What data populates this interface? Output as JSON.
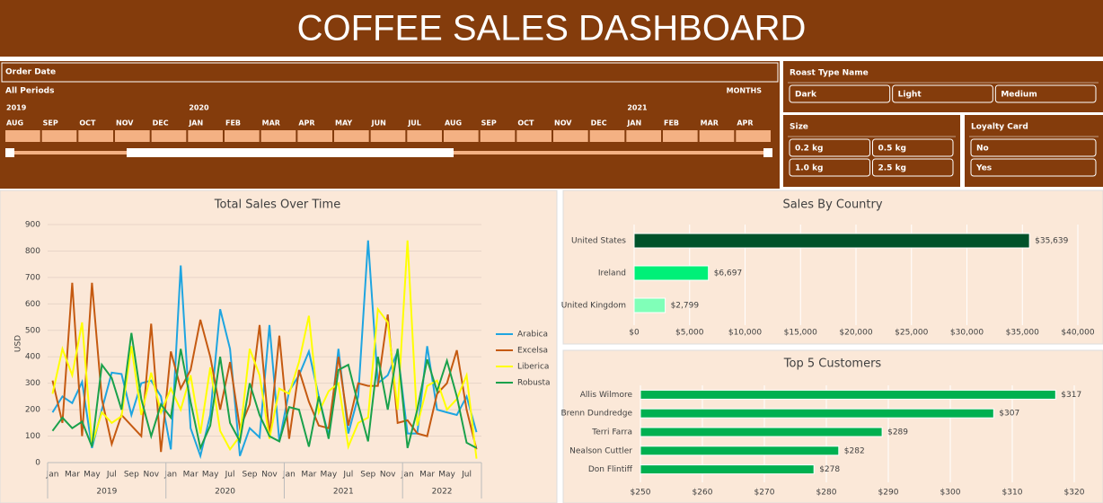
{
  "header": {
    "title": "COFFEE SALES DASHBOARD"
  },
  "timeline": {
    "label": "Order Date",
    "period": "All Periods",
    "level": "MONTHS",
    "years": [
      "2019",
      "2020",
      "2021"
    ],
    "months": [
      "AUG",
      "SEP",
      "OCT",
      "NOV",
      "DEC",
      "JAN",
      "FEB",
      "MAR",
      "APR",
      "MAY",
      "JUN",
      "JUL",
      "AUG",
      "SEP",
      "OCT",
      "NOV",
      "DEC",
      "JAN",
      "FEB",
      "MAR",
      "APR"
    ]
  },
  "slicers": [
    {
      "title": "Roast Type Name",
      "items": [
        "Dark",
        "Light",
        "Medium"
      ]
    },
    {
      "title": "Size",
      "items": [
        "0.2 kg",
        "0.5 kg",
        "1.0 kg",
        "2.5 kg"
      ]
    },
    {
      "title": "Loyalty Card",
      "items": [
        "No",
        "Yes"
      ]
    }
  ],
  "chart_data": [
    {
      "type": "line",
      "title": "Total Sales Over Time",
      "y_label": "USD",
      "categories": [
        "Jan",
        null,
        "Mar",
        null,
        "May",
        null,
        "Jul",
        null,
        "Sep",
        null,
        "Nov",
        null,
        "Jan",
        null,
        "Mar",
        null,
        "May",
        null,
        "Jul",
        null,
        "Sep",
        null,
        "Nov",
        null,
        "Jan",
        null,
        "Mar",
        null,
        "May",
        null,
        "Jul",
        null,
        "Sep",
        null,
        "Nov",
        null,
        "Jan",
        null,
        "Mar",
        null,
        "May",
        null,
        "Jul",
        null
      ],
      "years": [
        "2019",
        "2020",
        "2021",
        "2022"
      ],
      "ylim": [
        0,
        900
      ],
      "yticks": [
        0,
        100,
        200,
        300,
        400,
        500,
        600,
        700,
        800,
        900
      ],
      "grid": true,
      "legend": "right",
      "series": [
        {
          "name": "Arabica",
          "color": "#1fa5e0",
          "values": [
            190,
            250,
            225,
            305,
            55,
            200,
            340,
            335,
            180,
            300,
            310,
            250,
            50,
            745,
            130,
            25,
            180,
            580,
            430,
            25,
            130,
            95,
            520,
            80,
            270,
            330,
            420,
            250,
            100,
            430,
            110,
            250,
            840,
            300,
            330,
            420,
            110,
            110,
            440,
            200,
            190,
            180,
            250,
            115
          ]
        },
        {
          "name": "Excelsa",
          "color": "#c55a11",
          "values": [
            310,
            150,
            680,
            100,
            680,
            240,
            70,
            180,
            140,
            100,
            525,
            40,
            420,
            280,
            350,
            540,
            400,
            200,
            380,
            130,
            220,
            520,
            100,
            480,
            90,
            350,
            230,
            140,
            130,
            400,
            140,
            300,
            290,
            290,
            560,
            150,
            160,
            110,
            100,
            260,
            300,
            425,
            200,
            50
          ]
        },
        {
          "name": "Liberica",
          "color": "#ffff00",
          "values": [
            260,
            430,
            330,
            530,
            70,
            190,
            150,
            175,
            440,
            180,
            340,
            190,
            280,
            200,
            330,
            110,
            360,
            120,
            50,
            100,
            430,
            330,
            90,
            280,
            260,
            380,
            555,
            190,
            270,
            300,
            60,
            150,
            170,
            580,
            530,
            200,
            840,
            140,
            290,
            310,
            200,
            240,
            330,
            15
          ]
        },
        {
          "name": "Robusta",
          "color": "#1aa14b",
          "values": [
            120,
            170,
            130,
            155,
            60,
            370,
            320,
            200,
            490,
            240,
            100,
            220,
            170,
            430,
            230,
            55,
            140,
            400,
            150,
            80,
            300,
            180,
            100,
            80,
            210,
            200,
            60,
            250,
            90,
            350,
            370,
            220,
            80,
            400,
            200,
            430,
            55,
            200,
            390,
            270,
            385,
            250,
            75,
            55
          ]
        }
      ]
    },
    {
      "type": "hbar",
      "title": "Sales By Country",
      "categories": [
        "United States",
        "Ireland",
        "United Kingdom"
      ],
      "values": [
        35639,
        6697,
        2799
      ],
      "value_labels": [
        "$35,639",
        "$6,697",
        "$2,799"
      ],
      "colors": [
        "#00522a",
        "#00f078",
        "#80ffb8"
      ],
      "xlim": [
        0,
        40000
      ],
      "grid": true,
      "xticks": [
        {
          "value": 0,
          "label": "$0"
        },
        {
          "value": 5000,
          "label": "$5,000"
        },
        {
          "value": 10000,
          "label": "$10,000"
        },
        {
          "value": 15000,
          "label": "$15,000"
        },
        {
          "value": 20000,
          "label": "$20,000"
        },
        {
          "value": 25000,
          "label": "$25,000"
        },
        {
          "value": 30000,
          "label": "$30,000"
        },
        {
          "value": 35000,
          "label": "$35,000"
        },
        {
          "value": 40000,
          "label": "$40,000"
        }
      ]
    },
    {
      "type": "hbar",
      "title": "Top 5 Customers",
      "categories": [
        "Allis Wilmore",
        "Brenn Dundredge",
        "Terri Farra",
        "Nealson Cuttler",
        "Don Flintiff"
      ],
      "values": [
        317,
        307,
        289,
        282,
        278
      ],
      "value_labels": [
        "$317",
        "$307",
        "$289",
        "$282",
        "$278"
      ],
      "color": "#00b050",
      "xlim": [
        250,
        320
      ],
      "grid": true,
      "xticks": [
        {
          "value": 250,
          "label": "$250"
        },
        {
          "value": 260,
          "label": "$260"
        },
        {
          "value": 270,
          "label": "$270"
        },
        {
          "value": 280,
          "label": "$280"
        },
        {
          "value": 290,
          "label": "$290"
        },
        {
          "value": 300,
          "label": "$300"
        },
        {
          "value": 310,
          "label": "$310"
        },
        {
          "value": 320,
          "label": "$320"
        }
      ]
    }
  ]
}
